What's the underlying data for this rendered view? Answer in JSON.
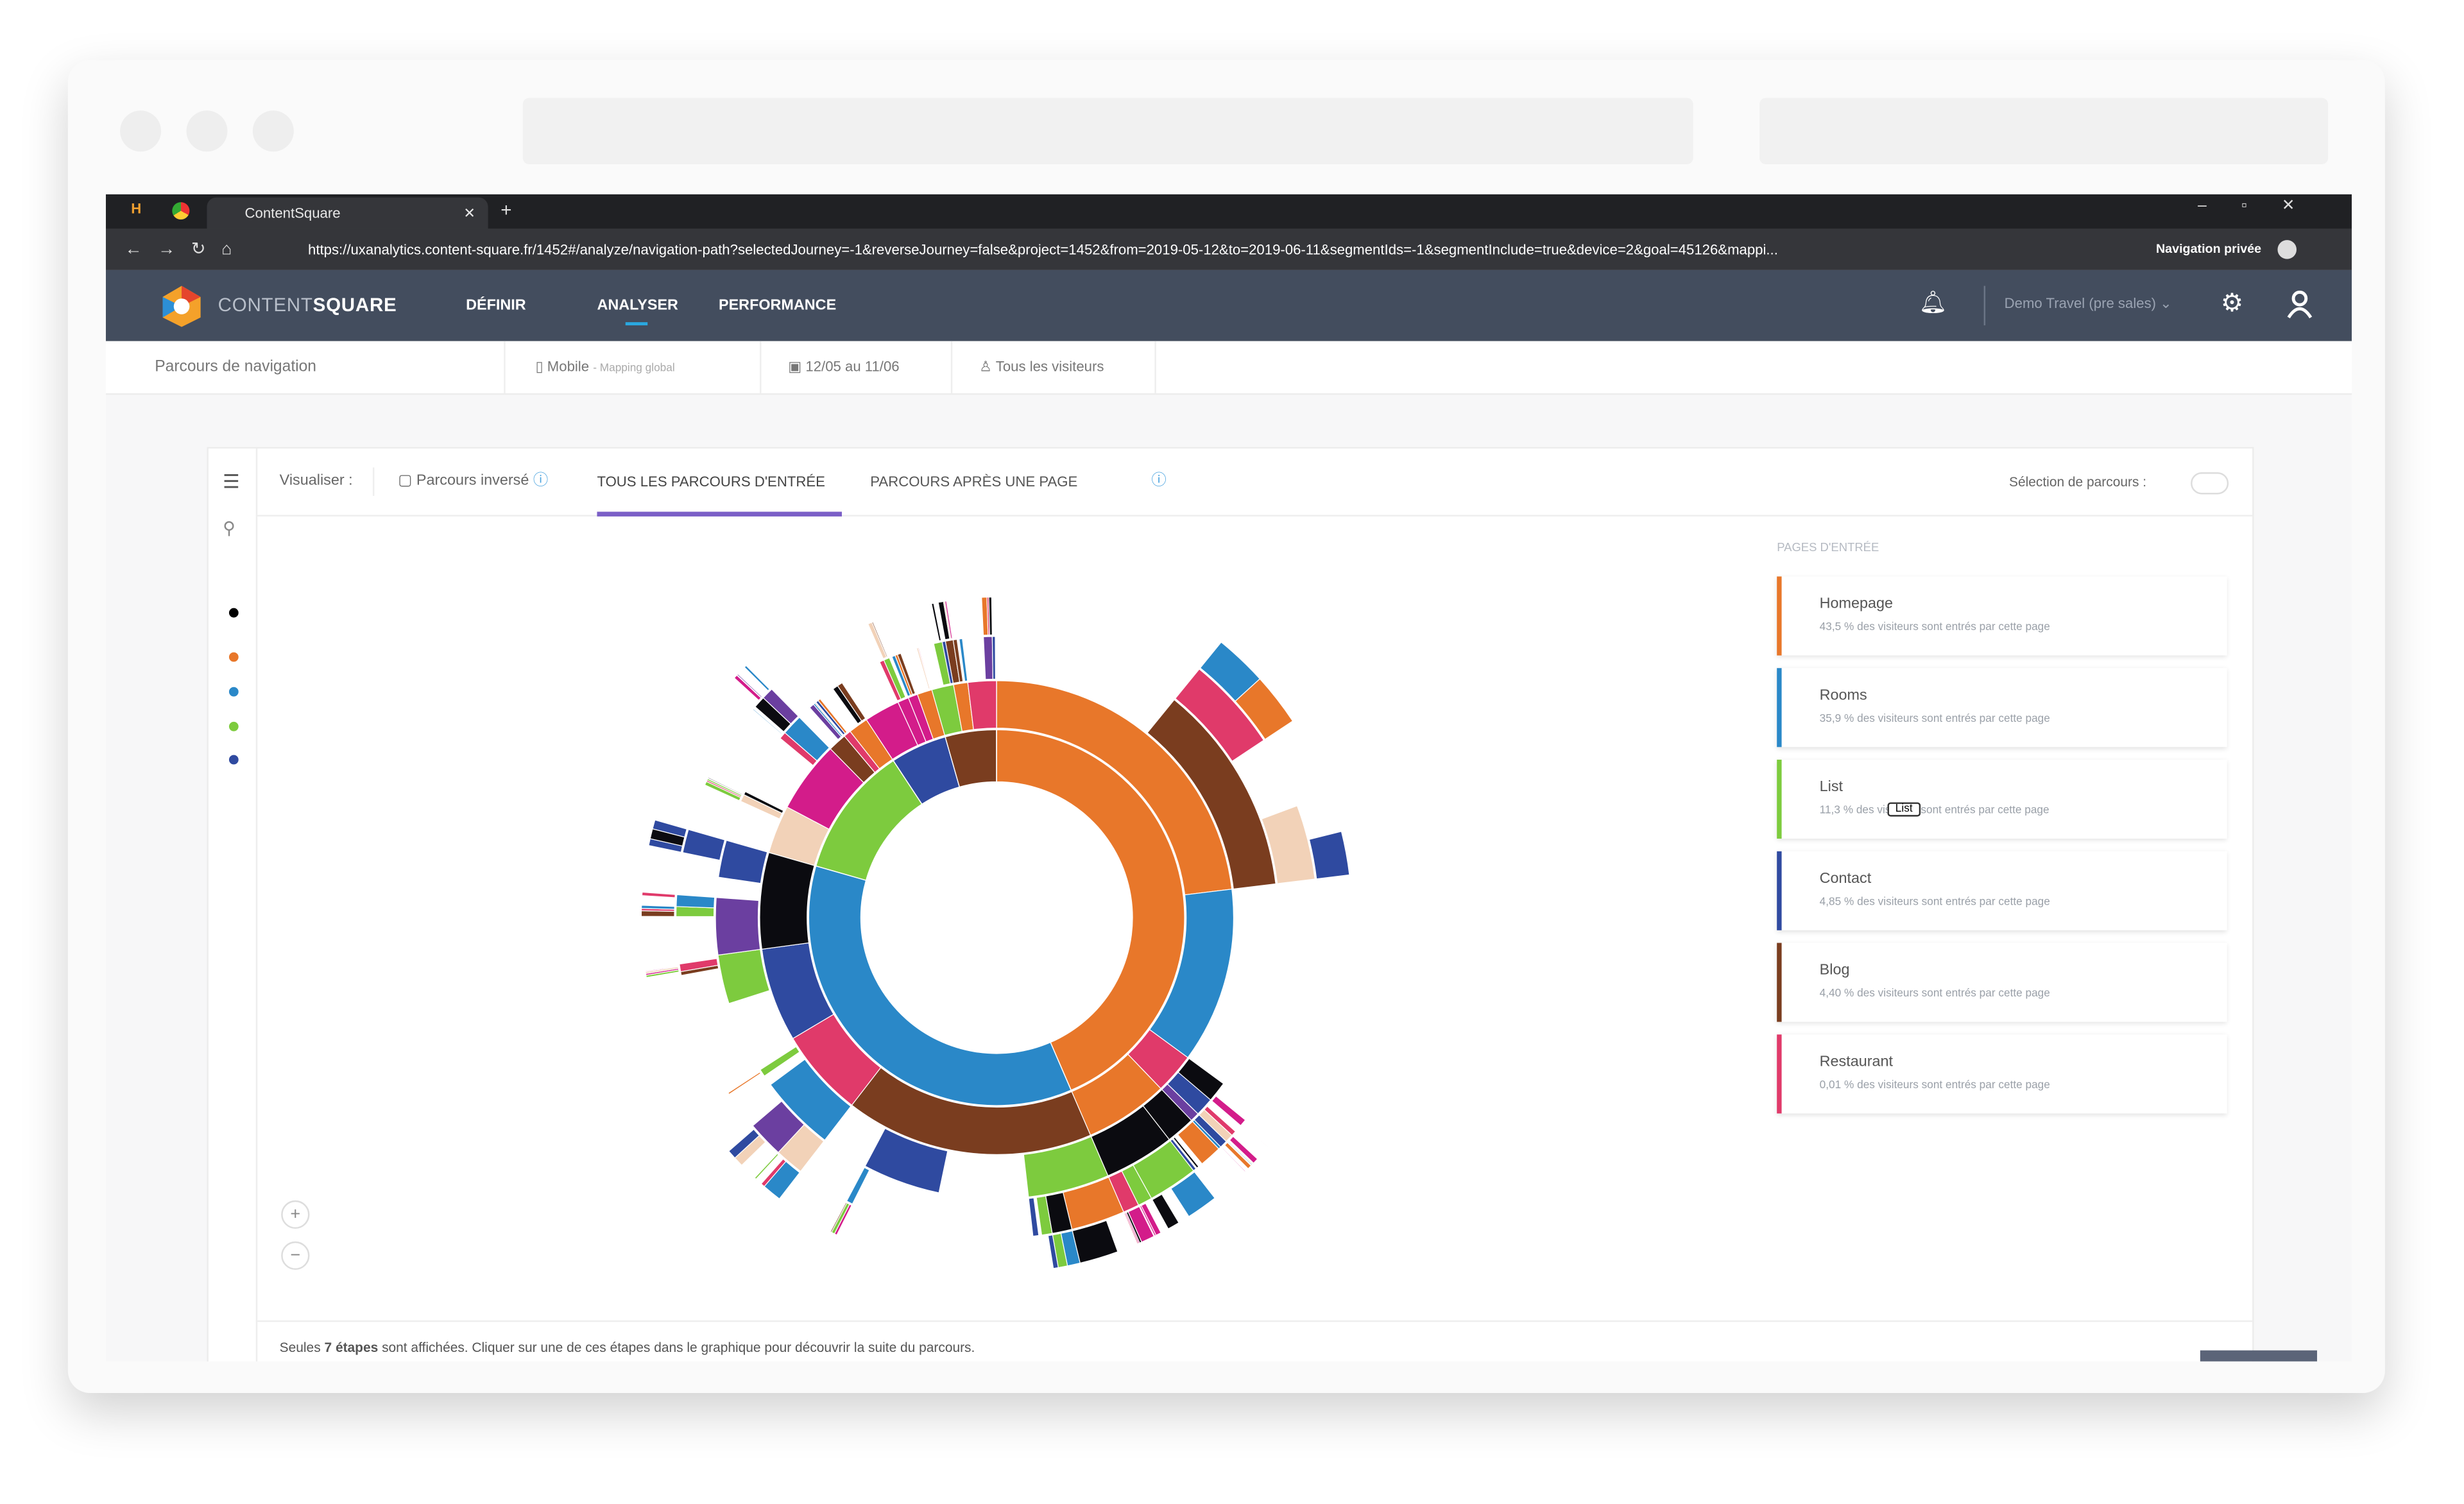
{
  "browser": {
    "tab_title": "ContentSquare",
    "url": "https://uxanalytics.content-square.fr/1452#/analyze/navigation-path?selectedJourney=-1&reverseJourney=false&project=1452&from=2019-05-12&to=2019-06-11&segmentIds=-1&segmentInclude=true&device=2&goal=45126&mappi...",
    "private_label": "Navigation privée"
  },
  "app_nav": {
    "logo_light": "CONTENT",
    "logo_bold": "SQUARE",
    "menu": [
      "DÉFINIR",
      "ANALYSER",
      "PERFORMANCE"
    ],
    "active_menu": 1,
    "account": "Demo Travel (pre sales)"
  },
  "subheader": {
    "page": "Parcours de navigation",
    "device": "Mobile",
    "mapping": "- Mapping global",
    "dates": "12/05 au 11/06",
    "segment": "Tous les visiteurs"
  },
  "toolbar": {
    "visualize": "Visualiser :",
    "reverse": "Parcours inversé",
    "tabs": [
      "TOUS LES PARCOURS D'ENTRÉE",
      "PARCOURS APRÈS UNE PAGE"
    ],
    "active_tab": 0,
    "selection": "Sélection de parcours :"
  },
  "chart_data": {
    "type": "sunburst",
    "title": "PAGES D'ENTRÉE",
    "categories": [
      "Homepage",
      "Rooms",
      "List",
      "Contact",
      "Blog",
      "Restaurant"
    ],
    "values": [
      43.5,
      35.9,
      11.3,
      4.85,
      4.4,
      0.01
    ],
    "value_labels": [
      "43,5 %",
      "35,9 %",
      "11,3 %",
      "4,85 %",
      "4,40 %",
      "0,01 %"
    ],
    "caption": "des visiteurs sont entrés par cette page",
    "colors": [
      "#e8772a",
      "#2a88c8",
      "#7dcb3e",
      "#2f4aa0",
      "#7a3d1f",
      "#e03a6a"
    ],
    "tooltip": "List"
  },
  "footer": {
    "before": "Seules ",
    "bold": "7 étapes",
    "after": " sont affichées. Cliquer sur une de ces étapes dans le graphique pour découvrir la suite du parcours."
  }
}
